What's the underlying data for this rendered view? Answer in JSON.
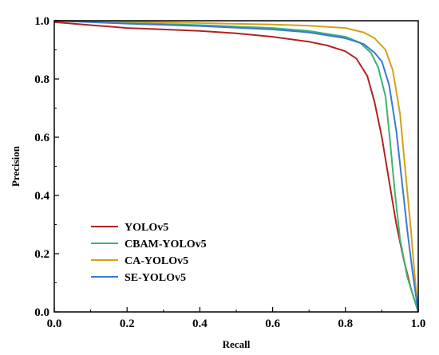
{
  "chart_data": {
    "type": "line",
    "xlabel": "Recall",
    "ylabel": "Precision",
    "xlim": [
      0.0,
      1.0
    ],
    "ylim": [
      0.0,
      1.0
    ],
    "x_ticks": [
      "0.0",
      "0.2",
      "0.4",
      "0.6",
      "0.8",
      "1.0"
    ],
    "y_ticks": [
      "0.0",
      "0.2",
      "0.4",
      "0.6",
      "0.8",
      "1.0"
    ],
    "grid": false,
    "legend_position": "lower-left",
    "series": [
      {
        "name": "YOLOv5",
        "color": "#b22222",
        "points": [
          [
            0.0,
            0.995
          ],
          [
            0.1,
            0.985
          ],
          [
            0.2,
            0.975
          ],
          [
            0.3,
            0.97
          ],
          [
            0.4,
            0.965
          ],
          [
            0.5,
            0.957
          ],
          [
            0.6,
            0.945
          ],
          [
            0.7,
            0.928
          ],
          [
            0.75,
            0.915
          ],
          [
            0.8,
            0.895
          ],
          [
            0.83,
            0.87
          ],
          [
            0.86,
            0.81
          ],
          [
            0.88,
            0.72
          ],
          [
            0.9,
            0.6
          ],
          [
            0.92,
            0.45
          ],
          [
            0.94,
            0.3
          ],
          [
            0.96,
            0.18
          ],
          [
            0.98,
            0.08
          ],
          [
            1.0,
            0.0
          ]
        ]
      },
      {
        "name": "CBAM-YOLOv5",
        "color": "#3cb371",
        "points": [
          [
            0.0,
            1.0
          ],
          [
            0.2,
            0.993
          ],
          [
            0.4,
            0.985
          ],
          [
            0.6,
            0.975
          ],
          [
            0.7,
            0.965
          ],
          [
            0.8,
            0.945
          ],
          [
            0.84,
            0.925
          ],
          [
            0.87,
            0.89
          ],
          [
            0.89,
            0.84
          ],
          [
            0.91,
            0.74
          ],
          [
            0.92,
            0.62
          ],
          [
            0.935,
            0.42
          ],
          [
            0.95,
            0.25
          ],
          [
            0.97,
            0.12
          ],
          [
            1.0,
            0.0
          ]
        ]
      },
      {
        "name": "CA-YOLOv5",
        "color": "#d4a017",
        "points": [
          [
            0.0,
            1.0
          ],
          [
            0.2,
            0.997
          ],
          [
            0.4,
            0.992
          ],
          [
            0.6,
            0.987
          ],
          [
            0.7,
            0.983
          ],
          [
            0.8,
            0.975
          ],
          [
            0.85,
            0.96
          ],
          [
            0.88,
            0.94
          ],
          [
            0.91,
            0.9
          ],
          [
            0.93,
            0.83
          ],
          [
            0.95,
            0.68
          ],
          [
            0.965,
            0.48
          ],
          [
            0.98,
            0.28
          ],
          [
            0.99,
            0.13
          ],
          [
            1.0,
            0.0
          ]
        ]
      },
      {
        "name": "SE-YOLOv5",
        "color": "#3a78d6",
        "points": [
          [
            0.0,
            1.0
          ],
          [
            0.2,
            0.99
          ],
          [
            0.4,
            0.982
          ],
          [
            0.6,
            0.97
          ],
          [
            0.7,
            0.96
          ],
          [
            0.8,
            0.94
          ],
          [
            0.85,
            0.92
          ],
          [
            0.88,
            0.89
          ],
          [
            0.9,
            0.86
          ],
          [
            0.92,
            0.78
          ],
          [
            0.94,
            0.62
          ],
          [
            0.955,
            0.45
          ],
          [
            0.97,
            0.28
          ],
          [
            0.985,
            0.13
          ],
          [
            1.0,
            0.0
          ]
        ]
      }
    ]
  }
}
